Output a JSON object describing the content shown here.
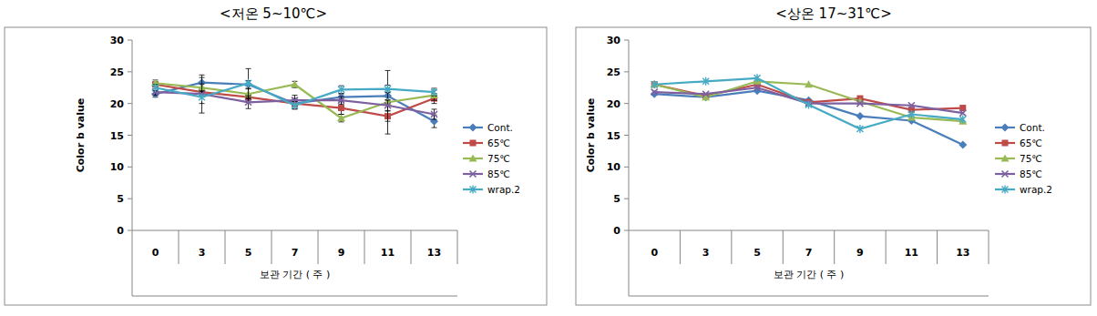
{
  "chart_data": [
    {
      "type": "line",
      "title": "<저온 5~10℃>",
      "x_label": "보관 기간 ( 주 )",
      "y_label": "Color b value",
      "categories": [
        "0",
        "3",
        "5",
        "7",
        "9",
        "11",
        "13"
      ],
      "ylim": [
        0,
        30
      ],
      "yticks": [
        0,
        5,
        10,
        15,
        20,
        25,
        30
      ],
      "grid": false,
      "legend": "right",
      "series": [
        {
          "name": "Cont.",
          "color": "#4a7ebb",
          "marker": "diamond",
          "line_style": "solid",
          "values": [
            21.5,
            23.3,
            23.0,
            20.0,
            21.0,
            21.2,
            17.2
          ],
          "errors": [
            0.5,
            0.8,
            0.6,
            0.8,
            0.5,
            0.6,
            1.0
          ]
        },
        {
          "name": "65℃",
          "color": "#be4b48",
          "marker": "square",
          "line_style": "solid",
          "values": [
            23.0,
            21.8,
            21.0,
            20.0,
            19.3,
            18.0,
            20.8
          ],
          "errors": [
            0.4,
            0.5,
            0.5,
            0.5,
            1.0,
            0.8,
            0.8
          ]
        },
        {
          "name": "75℃",
          "color": "#98b954",
          "marker": "triangle",
          "line_style": "solid",
          "values": [
            23.2,
            22.5,
            21.5,
            23.0,
            17.7,
            20.2,
            21.3
          ],
          "errors": [
            0.5,
            0.6,
            0.8,
            0.5,
            0.6,
            5.0,
            0.8
          ]
        },
        {
          "name": "85℃",
          "color": "#7d60a0",
          "marker": "x",
          "line_style": "solid",
          "values": [
            21.8,
            21.5,
            20.2,
            20.5,
            20.5,
            19.7,
            18.3
          ],
          "errors": [
            0.5,
            3.0,
            1.0,
            0.8,
            0.6,
            0.8,
            0.8
          ]
        },
        {
          "name": "wrap.2",
          "color": "#46aac5",
          "marker": "star",
          "line_style": "solid",
          "values": [
            22.5,
            21.0,
            23.2,
            19.7,
            22.2,
            22.3,
            21.8
          ],
          "errors": [
            0.5,
            1.0,
            2.3,
            0.6,
            0.6,
            0.6,
            0.6
          ]
        }
      ]
    },
    {
      "type": "line",
      "title": "<상온 17~31℃>",
      "x_label": "보관 기간 ( 주 )",
      "y_label": "Color b value",
      "categories": [
        "0",
        "3",
        "5",
        "7",
        "9",
        "11",
        "13"
      ],
      "ylim": [
        0,
        30
      ],
      "yticks": [
        0,
        5,
        10,
        15,
        20,
        25,
        30
      ],
      "grid": false,
      "legend": "right",
      "series": [
        {
          "name": "Cont.",
          "color": "#4a7ebb",
          "marker": "diamond",
          "line_style": "solid",
          "values": [
            21.5,
            21.0,
            22.0,
            20.5,
            18.0,
            17.3,
            13.5
          ]
        },
        {
          "name": "65℃",
          "color": "#be4b48",
          "marker": "square",
          "line_style": "solid",
          "values": [
            23.0,
            21.2,
            23.0,
            20.2,
            20.8,
            19.0,
            19.3
          ]
        },
        {
          "name": "75℃",
          "color": "#98b954",
          "marker": "triangle",
          "line_style": "solid",
          "values": [
            23.0,
            21.0,
            23.5,
            23.0,
            20.3,
            17.8,
            17.2
          ]
        },
        {
          "name": "85℃",
          "color": "#7d60a0",
          "marker": "x",
          "line_style": "solid",
          "values": [
            21.8,
            21.5,
            22.5,
            20.0,
            20.0,
            19.7,
            18.5
          ]
        },
        {
          "name": "wrap.2",
          "color": "#46aac5",
          "marker": "star",
          "line_style": "solid",
          "values": [
            23.0,
            23.5,
            24.0,
            19.8,
            16.0,
            18.3,
            17.5
          ]
        }
      ]
    }
  ]
}
